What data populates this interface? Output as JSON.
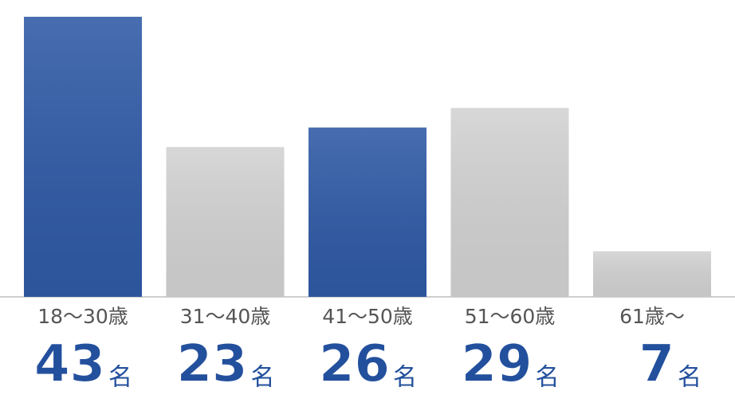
{
  "chart_data": {
    "type": "bar",
    "categories": [
      "18〜30歳",
      "31〜40歳",
      "41〜50歳",
      "51〜60歳",
      "61歳〜"
    ],
    "values": [
      43,
      23,
      26,
      29,
      7
    ],
    "unit": "名",
    "colors": [
      "#2f5aa6",
      "#d2d2d2",
      "#2f5aa6",
      "#d2d2d2",
      "#d2d2d2"
    ]
  }
}
